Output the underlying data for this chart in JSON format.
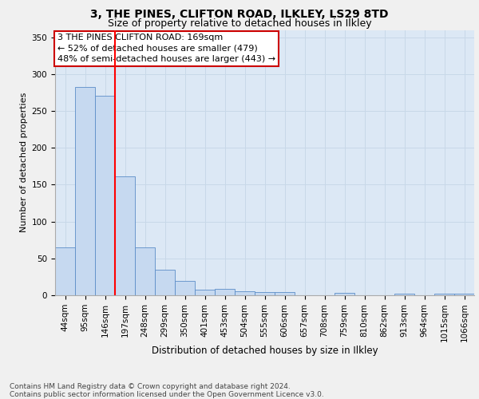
{
  "title1": "3, THE PINES, CLIFTON ROAD, ILKLEY, LS29 8TD",
  "title2": "Size of property relative to detached houses in Ilkley",
  "xlabel": "Distribution of detached houses by size in Ilkley",
  "ylabel": "Number of detached properties",
  "categories": [
    "44sqm",
    "95sqm",
    "146sqm",
    "197sqm",
    "248sqm",
    "299sqm",
    "350sqm",
    "401sqm",
    "453sqm",
    "504sqm",
    "555sqm",
    "606sqm",
    "657sqm",
    "708sqm",
    "759sqm",
    "810sqm",
    "862sqm",
    "913sqm",
    "964sqm",
    "1015sqm",
    "1066sqm"
  ],
  "values": [
    65,
    283,
    271,
    161,
    65,
    35,
    19,
    8,
    9,
    5,
    4,
    4,
    0,
    0,
    3,
    0,
    0,
    2,
    0,
    2,
    2
  ],
  "bar_color": "#c6d9f0",
  "bar_edge_color": "#5b8dc8",
  "red_line_x": 2.5,
  "annotation_lines": [
    "3 THE PINES CLIFTON ROAD: 169sqm",
    "← 52% of detached houses are smaller (479)",
    "48% of semi-detached houses are larger (443) →"
  ],
  "annotation_box_color": "#ffffff",
  "annotation_box_edge_color": "#cc0000",
  "ylim": [
    0,
    360
  ],
  "yticks": [
    0,
    50,
    100,
    150,
    200,
    250,
    300,
    350
  ],
  "grid_color": "#c8d8e8",
  "background_color": "#dce8f5",
  "fig_background_color": "#f0f0f0",
  "footer_text": "Contains HM Land Registry data © Crown copyright and database right 2024.\nContains public sector information licensed under the Open Government Licence v3.0.",
  "title1_fontsize": 10,
  "title2_fontsize": 9,
  "xlabel_fontsize": 8.5,
  "ylabel_fontsize": 8,
  "tick_fontsize": 7.5,
  "annotation_fontsize": 8,
  "footer_fontsize": 6.5
}
